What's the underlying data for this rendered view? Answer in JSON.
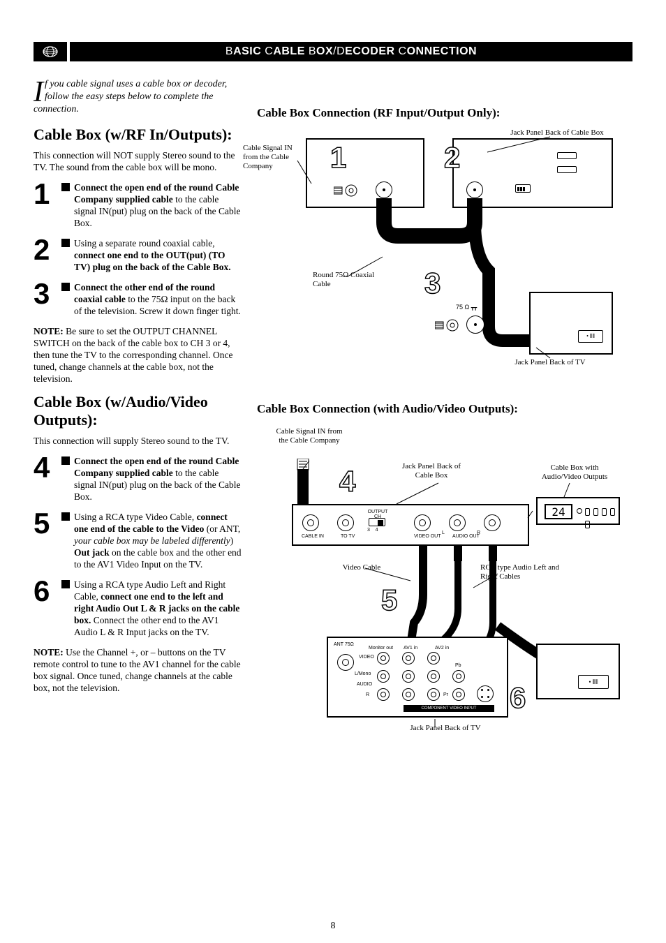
{
  "page_number": "8",
  "banner": {
    "title_html": "B<span class='small'>ASIC</span> C<span class='small'>ABLE</span> B<span class='small'>OX</span>/D<span class='small'>ECODER</span> C<span class='small'>ONNECTION</span>"
  },
  "intro": {
    "dropcap": "I",
    "rest": "f you cable signal uses a cable box or decoder, follow the easy steps below to complete the connection."
  },
  "left": {
    "heading_rf": "Cable Box (w/RF In/Outputs):",
    "body_rf": "This connection will NOT supply Stereo sound to the TV. The sound from the cable box will be mono.",
    "steps_rf": [
      {
        "n": "1",
        "html": "<b>Connect the open end of the round Cable Company supplied cable</b> to the cable signal IN(put) plug on the back of the Cable Box."
      },
      {
        "n": "2",
        "html": "Using a separate round coaxial cable, <b>connect one end to the OUT(put) (TO TV) plug on the back of the Cable Box.</b>"
      },
      {
        "n": "3",
        "html": "<b>Connect the other end of the round coaxial cable</b> to the 75Ω input on the back of the television. Screw it down finger tight."
      }
    ],
    "note_rf": "<b>NOTE:</b> Be sure to set the OUTPUT CHANNEL SWITCH on the back of the cable box to CH 3 or 4, then tune the TV to the corresponding channel. Once tuned, change channels at the cable box, not the television.",
    "heading_av": "Cable Box (w/Audio/Video Outputs):",
    "body_av": "This connection will supply Stereo sound to the TV.",
    "steps_av": [
      {
        "n": "4",
        "html": "<b>Connect the open end of the round Cable Company supplied cable</b> to the cable signal IN(put) plug on the back of the Cable Box."
      },
      {
        "n": "5",
        "html": "Using a RCA type Video Cable, <b>connect one end of the cable to the Video</b> (or ANT, <i>your cable box may be labeled differently</i>) <b>Out jack</b> on the cable box and the other end to the AV1 Video Input on the TV."
      },
      {
        "n": "6",
        "html": "Using a RCA type Audio Left and Right Cable, <b>connect one end to the left and right Audio Out L & R jacks on the cable box.</b> Connect the other end to the AV1 Audio L & R Input jacks on the TV."
      }
    ],
    "note_av": "<b>NOTE:</b> Use the Channel +, or – buttons on the TV remote control to tune to the AV1 channel for the cable box signal. Once tuned, change channels at the cable box, not the television."
  },
  "right": {
    "title_rf": "Cable Box Connection (RF Input/Output Only):",
    "title_av": "Cable Box Connection (with Audio/Video Outputs):",
    "diag_rf": {
      "label_signal_in": "Cable Signal IN from the Cable Company",
      "label_jack_cable": "Jack Panel Back of Cable Box",
      "label_coax": "Round 75Ω Coaxial Cable",
      "label_75ohm": "75 Ω",
      "label_jack_tv": "Jack Panel Back of TV",
      "n1": "1",
      "n2": "2",
      "n3": "3"
    },
    "diag_av": {
      "label_signal_in": "Cable Signal IN from the Cable Company",
      "label_jack_cable": "Jack Panel Back of Cable Box",
      "label_cable_box": "Cable Box with Audio/Video Outputs",
      "label_video_cable": "Video Cable",
      "label_rca": "RCA type Audio Left and Right Cables",
      "label_jack_tv": "Jack Panel Back of TV",
      "display": "24",
      "label_output_ch": "OUTPUT CH",
      "label_cable_in": "CABLE IN",
      "label_to_tv": "TO TV",
      "label_video_out": "VIDEO OUT",
      "label_audio_out_l": "L",
      "label_audio_out": "AUDIO OUT",
      "label_audio_out_r": "R",
      "label_ant75": "ANT 75Ω",
      "label_monitor": "Monitor out",
      "label_av1": "AV1 in",
      "label_av2": "AV2 in",
      "label_video": "VIDEO",
      "label_lmono": "L/Mono",
      "label_audio": "AUDIO",
      "label_r": "R",
      "label_pr": "Pr",
      "label_pb": "Pb",
      "label_comp": "COMPONENT VIDEO INPUT",
      "n4": "4",
      "n5": "5",
      "n6": "6"
    }
  }
}
